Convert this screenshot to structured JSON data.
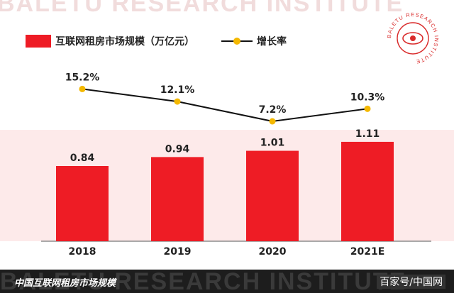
{
  "watermark_text": "BALETU RESEARCH INSTITUTE",
  "logo": {
    "ring_text": "BALETU RESEARCH INSTITUTE"
  },
  "legend": {
    "bar_label": "互联网租房市场规模（万亿元）",
    "line_label": "增长率"
  },
  "colors": {
    "bar": "#ee1c25",
    "band": "#fdeaea",
    "line": "#111111",
    "marker": "#f4b800"
  },
  "chart_data": {
    "type": "bar",
    "categories": [
      "2018",
      "2019",
      "2020",
      "2021E"
    ],
    "series": [
      {
        "name": "互联网租房市场规模（万亿元）",
        "type": "bar",
        "values": [
          0.84,
          0.94,
          1.01,
          1.11
        ],
        "labels": [
          "0.84",
          "0.94",
          "1.01",
          "1.11"
        ]
      },
      {
        "name": "增长率",
        "type": "line",
        "values": [
          15.2,
          12.1,
          7.2,
          10.3
        ],
        "labels": [
          "15.2%",
          "12.1%",
          "7.2%",
          "10.3%"
        ]
      }
    ],
    "legend": "top-left",
    "grid": false
  },
  "footer": {
    "caption": "中国互联网租房市场规模",
    "source": "百家号/中国网"
  }
}
